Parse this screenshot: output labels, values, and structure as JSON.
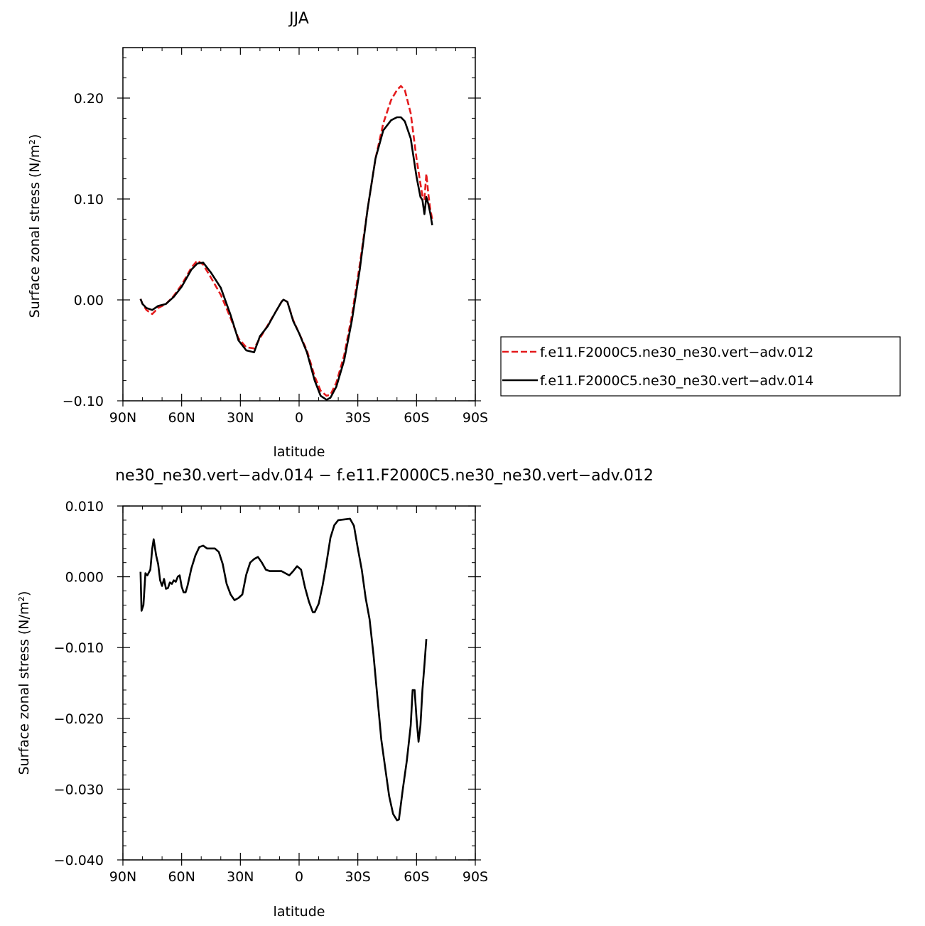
{
  "chart_data": [
    {
      "type": "line",
      "title": "JJA",
      "xlabel": "latitude",
      "ylabel": "Surface zonal stress (N/m²)",
      "xlim": [
        90,
        -90
      ],
      "ylim": [
        -0.1,
        0.25
      ],
      "x_ticks": [
        90,
        60,
        30,
        0,
        -30,
        -60,
        -90
      ],
      "x_tick_labels": [
        "90N",
        "60N",
        "30N",
        "0",
        "30S",
        "60S",
        "90S"
      ],
      "y_ticks": [
        -0.1,
        0.0,
        0.1,
        0.2
      ],
      "y_tick_labels": [
        "−0.10",
        "0.00",
        "0.10",
        "0.20"
      ],
      "legend_position": "right",
      "series": [
        {
          "name": "f.e11.F2000C5.ne30_ne30.vert−adv.012",
          "color": "#e41a1c",
          "dash": "dashed",
          "points": [
            [
              81,
              0.001
            ],
            [
              80,
              -0.004
            ],
            [
              78,
              -0.01
            ],
            [
              75,
              -0.014
            ],
            [
              72,
              -0.008
            ],
            [
              68,
              -0.004
            ],
            [
              64,
              0.004
            ],
            [
              60,
              0.015
            ],
            [
              55,
              0.032
            ],
            [
              52,
              0.039
            ],
            [
              49,
              0.035
            ],
            [
              45,
              0.022
            ],
            [
              40,
              0.005
            ],
            [
              35,
              -0.018
            ],
            [
              31,
              -0.038
            ],
            [
              27,
              -0.047
            ],
            [
              23,
              -0.048
            ],
            [
              20,
              -0.038
            ],
            [
              16,
              -0.025
            ],
            [
              12,
              -0.012
            ],
            [
              9,
              -0.002
            ],
            [
              8,
              0.0005
            ],
            [
              6,
              -0.002
            ],
            [
              3,
              -0.02
            ],
            [
              0,
              -0.033
            ],
            [
              -4,
              -0.05
            ],
            [
              -8,
              -0.076
            ],
            [
              -11,
              -0.09
            ],
            [
              -14,
              -0.095
            ],
            [
              -16,
              -0.094
            ],
            [
              -19,
              -0.082
            ],
            [
              -23,
              -0.055
            ],
            [
              -27,
              -0.015
            ],
            [
              -31,
              0.035
            ],
            [
              -35,
              0.09
            ],
            [
              -39,
              0.14
            ],
            [
              -43,
              0.175
            ],
            [
              -47,
              0.198
            ],
            [
              -50,
              0.208
            ],
            [
              -52,
              0.212
            ],
            [
              -54,
              0.208
            ],
            [
              -57,
              0.185
            ],
            [
              -60,
              0.14
            ],
            [
              -62,
              0.115
            ],
            [
              -63,
              0.103
            ],
            [
              -64,
              0.1
            ],
            [
              -65,
              0.125
            ],
            [
              -66,
              0.105
            ],
            [
              -67,
              0.09
            ],
            [
              -68,
              0.08
            ]
          ]
        },
        {
          "name": "f.e11.F2000C5.ne30_ne30.vert−adv.014",
          "color": "#000000",
          "dash": "solid",
          "points": [
            [
              81,
              0.001
            ],
            [
              80,
              -0.004
            ],
            [
              78,
              -0.008
            ],
            [
              75,
              -0.01
            ],
            [
              72,
              -0.006
            ],
            [
              68,
              -0.004
            ],
            [
              64,
              0.003
            ],
            [
              60,
              0.013
            ],
            [
              55,
              0.03
            ],
            [
              52,
              0.036
            ],
            [
              49,
              0.037
            ],
            [
              45,
              0.027
            ],
            [
              40,
              0.012
            ],
            [
              35,
              -0.015
            ],
            [
              31,
              -0.04
            ],
            [
              27,
              -0.05
            ],
            [
              23,
              -0.052
            ],
            [
              20,
              -0.036
            ],
            [
              16,
              -0.026
            ],
            [
              12,
              -0.012
            ],
            [
              9,
              -0.002
            ],
            [
              8,
              0.0002
            ],
            [
              6,
              -0.002
            ],
            [
              3,
              -0.021
            ],
            [
              0,
              -0.033
            ],
            [
              -4,
              -0.052
            ],
            [
              -8,
              -0.08
            ],
            [
              -11,
              -0.095
            ],
            [
              -14,
              -0.099
            ],
            [
              -16,
              -0.097
            ],
            [
              -19,
              -0.086
            ],
            [
              -23,
              -0.06
            ],
            [
              -27,
              -0.02
            ],
            [
              -31,
              0.03
            ],
            [
              -35,
              0.09
            ],
            [
              -39,
              0.14
            ],
            [
              -43,
              0.168
            ],
            [
              -47,
              0.178
            ],
            [
              -50,
              0.181
            ],
            [
              -52,
              0.181
            ],
            [
              -54,
              0.177
            ],
            [
              -57,
              0.16
            ],
            [
              -60,
              0.122
            ],
            [
              -62,
              0.102
            ],
            [
              -63,
              0.099
            ],
            [
              -64,
              0.085
            ],
            [
              -65,
              0.102
            ],
            [
              -66,
              0.095
            ],
            [
              -67,
              0.086
            ],
            [
              -68,
              0.074
            ]
          ]
        }
      ]
    },
    {
      "type": "line",
      "title": "ne30_ne30.vert−adv.014 − f.e11.F2000C5.ne30_ne30.vert−adv.012",
      "xlabel": "latitude",
      "ylabel": "Surface zonal stress (N/m²)",
      "xlim": [
        90,
        -90
      ],
      "ylim": [
        -0.04,
        0.01
      ],
      "x_ticks": [
        90,
        60,
        30,
        0,
        -30,
        -60,
        -90
      ],
      "x_tick_labels": [
        "90N",
        "60N",
        "30N",
        "0",
        "30S",
        "60S",
        "90S"
      ],
      "y_ticks": [
        -0.04,
        -0.03,
        -0.02,
        -0.01,
        0.0,
        0.01
      ],
      "y_tick_labels": [
        "−0.040",
        "−0.030",
        "−0.020",
        "−0.010",
        "0.000",
        "0.010"
      ],
      "series": [
        {
          "color": "#000000",
          "dash": "solid",
          "points": [
            [
              81,
              0.0007
            ],
            [
              80.5,
              -0.0048
            ],
            [
              79.5,
              -0.004
            ],
            [
              78.5,
              0.0005
            ],
            [
              77.5,
              0.0002
            ],
            [
              76,
              0.001
            ],
            [
              75,
              0.004
            ],
            [
              74.3,
              0.0053
            ],
            [
              73,
              0.003
            ],
            [
              72,
              0.0018
            ],
            [
              71,
              -0.0005
            ],
            [
              70,
              -0.0013
            ],
            [
              69,
              -0.0003
            ],
            [
              68,
              -0.0017
            ],
            [
              67,
              -0.0016
            ],
            [
              66,
              -0.0008
            ],
            [
              65,
              -0.001
            ],
            [
              64,
              -0.0005
            ],
            [
              63,
              -0.0007
            ],
            [
              62,
              0.0
            ],
            [
              61,
              0.0002
            ],
            [
              60,
              -0.0014
            ],
            [
              59,
              -0.0022
            ],
            [
              58,
              -0.0022
            ],
            [
              57,
              -0.0013
            ],
            [
              55,
              0.0012
            ],
            [
              53,
              0.003
            ],
            [
              51,
              0.0042
            ],
            [
              49,
              0.0044
            ],
            [
              47,
              0.004
            ],
            [
              45,
              0.004
            ],
            [
              43,
              0.004
            ],
            [
              41,
              0.0035
            ],
            [
              39,
              0.0018
            ],
            [
              37,
              -0.001
            ],
            [
              35,
              -0.0025
            ],
            [
              33,
              -0.0033
            ],
            [
              31,
              -0.003
            ],
            [
              29,
              -0.0025
            ],
            [
              27,
              0.0003
            ],
            [
              25,
              0.002
            ],
            [
              23,
              0.0025
            ],
            [
              21,
              0.0028
            ],
            [
              19,
              0.002
            ],
            [
              17,
              0.001
            ],
            [
              15,
              0.0008
            ],
            [
              13,
              0.0008
            ],
            [
              11,
              0.0008
            ],
            [
              9,
              0.0008
            ],
            [
              7,
              0.0005
            ],
            [
              5,
              0.0002
            ],
            [
              3,
              0.0008
            ],
            [
              1,
              0.0015
            ],
            [
              -1,
              0.001
            ],
            [
              -3,
              -0.0015
            ],
            [
              -5,
              -0.0035
            ],
            [
              -7,
              -0.005
            ],
            [
              -8,
              -0.005
            ],
            [
              -10,
              -0.0038
            ],
            [
              -12,
              -0.0012
            ],
            [
              -14,
              0.002
            ],
            [
              -16,
              0.0055
            ],
            [
              -18,
              0.0073
            ],
            [
              -20,
              0.008
            ],
            [
              -23,
              0.0081
            ],
            [
              -26,
              0.0082
            ],
            [
              -28,
              0.0072
            ],
            [
              -30,
              0.004
            ],
            [
              -32,
              0.001
            ],
            [
              -34,
              -0.003
            ],
            [
              -36,
              -0.006
            ],
            [
              -38,
              -0.011
            ],
            [
              -40,
              -0.017
            ],
            [
              -42,
              -0.023
            ],
            [
              -44,
              -0.027
            ],
            [
              -46,
              -0.031
            ],
            [
              -48,
              -0.0335
            ],
            [
              -50,
              -0.0344
            ],
            [
              -51,
              -0.0343
            ],
            [
              -53,
              -0.03
            ],
            [
              -55,
              -0.026
            ],
            [
              -57,
              -0.021
            ],
            [
              -58,
              -0.016
            ],
            [
              -59,
              -0.016
            ],
            [
              -60,
              -0.02
            ],
            [
              -61,
              -0.0233
            ],
            [
              -62,
              -0.021
            ],
            [
              -63,
              -0.016
            ],
            [
              -64,
              -0.0125
            ],
            [
              -65,
              -0.0088
            ]
          ]
        }
      ]
    }
  ]
}
